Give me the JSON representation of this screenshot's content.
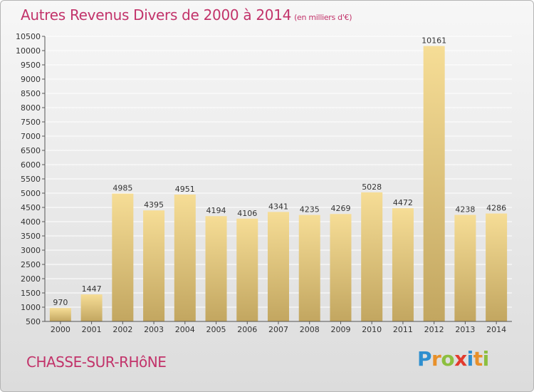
{
  "title": "Autres Revenus Divers de 2000 à 2014",
  "subtitle": "(en milliers d'€)",
  "commune": "CHASSE-SUR-RHôNE",
  "logo": {
    "text": "Proxiti",
    "letters": [
      {
        "ch": "P",
        "color": "#2e8fcf"
      },
      {
        "ch": "r",
        "color": "#e8902a"
      },
      {
        "ch": "o",
        "color": "#8cbf3f"
      },
      {
        "ch": "x",
        "color": "#e23b2e"
      },
      {
        "ch": "i",
        "color": "#2e8fcf"
      },
      {
        "ch": "t",
        "color": "#e8902a"
      },
      {
        "ch": "i",
        "color": "#8cbf3f"
      }
    ]
  },
  "colors": {
    "title": "#c2336a",
    "bar_light": "#f6dd96",
    "bar_dark": "#c2a660",
    "grid": "#ffffff",
    "axis": "#555555"
  },
  "chart_data": {
    "type": "bar",
    "categories": [
      "2000",
      "2001",
      "2002",
      "2003",
      "2004",
      "2005",
      "2006",
      "2007",
      "2008",
      "2009",
      "2010",
      "2011",
      "2012",
      "2013",
      "2014"
    ],
    "values": [
      970,
      1447,
      4985,
      4395,
      4951,
      4194,
      4106,
      4341,
      4235,
      4269,
      5028,
      4472,
      10161,
      4238,
      4286
    ],
    "title": "Autres Revenus Divers de 2000 à 2014",
    "ylim": [
      500,
      10500
    ],
    "yticks": [
      500,
      1000,
      1500,
      2000,
      2500,
      3000,
      3500,
      4000,
      4500,
      5000,
      5500,
      6000,
      6500,
      7000,
      7500,
      8000,
      8500,
      9000,
      9500,
      10000,
      10500
    ],
    "grid": true
  }
}
